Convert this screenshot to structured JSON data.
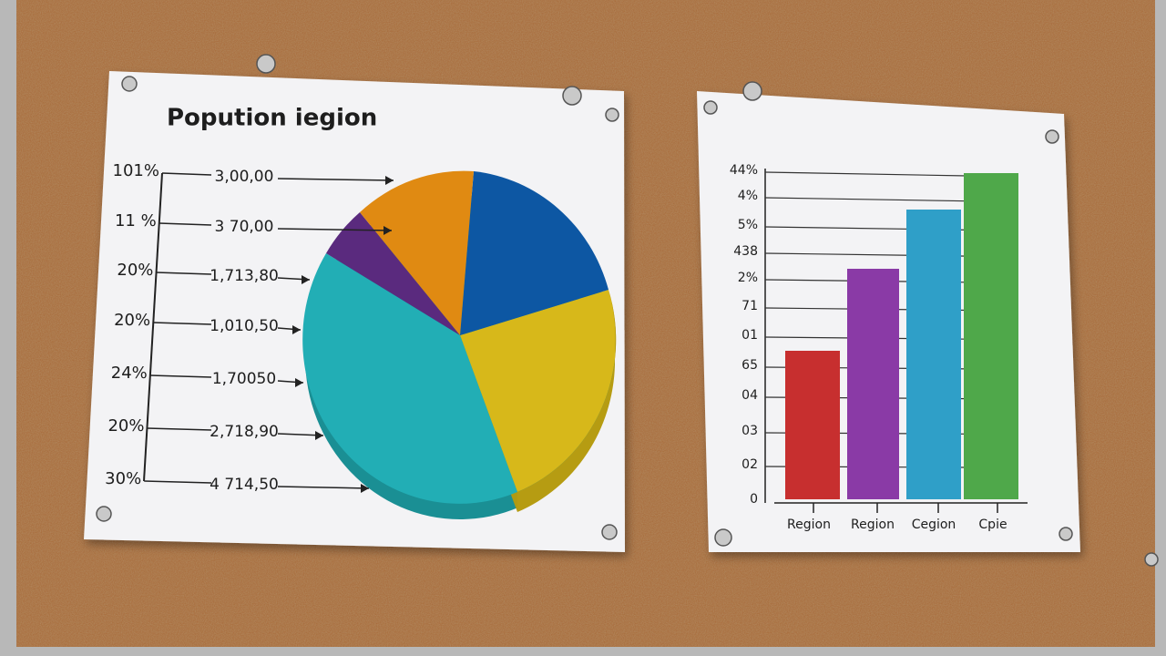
{
  "left_poster": {
    "title": "Popution iegion",
    "rows": [
      {
        "percent": "101%",
        "value": "3,00,00"
      },
      {
        "percent": "11 %",
        "value": "3 70,00"
      },
      {
        "percent": "20%",
        "value": "1,713,80"
      },
      {
        "percent": "20%",
        "value": "1,010,50"
      },
      {
        "percent": "24%",
        "value": "1,70050"
      },
      {
        "percent": "20%",
        "value": "2,718,90"
      },
      {
        "percent": "30%",
        "value": "4 714,50"
      }
    ]
  },
  "right_poster": {
    "y_labels": [
      "44%",
      "4%",
      "5%",
      "438",
      "2%",
      "71",
      "01",
      "65",
      "04",
      "03",
      "02",
      "0"
    ],
    "categories": [
      "Region",
      "Region",
      "Cegion",
      "Cpie"
    ]
  }
}
